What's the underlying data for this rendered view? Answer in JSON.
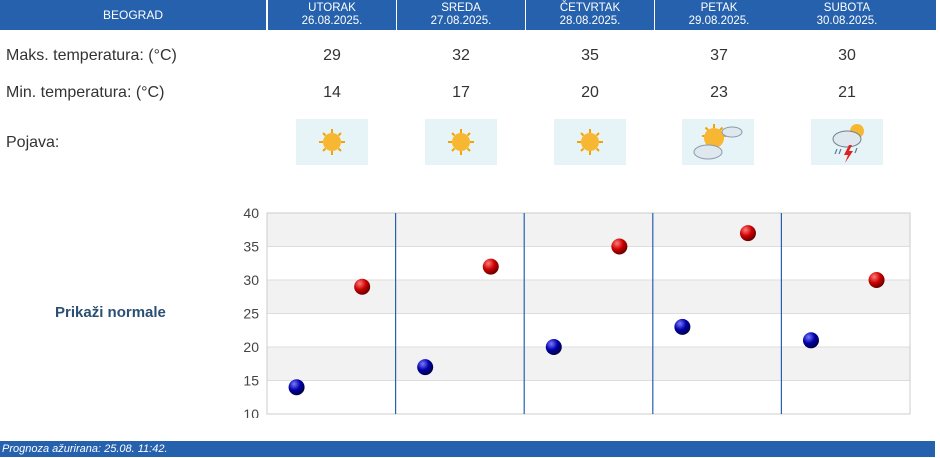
{
  "header": {
    "city": "BEOGRAD",
    "days": [
      {
        "name": "UTORAK",
        "date": "26.08.2025."
      },
      {
        "name": "SREDA",
        "date": "27.08.2025."
      },
      {
        "name": "ČETVRTAK",
        "date": "28.08.2025."
      },
      {
        "name": "PETAK",
        "date": "29.08.2025."
      },
      {
        "name": "SUBOTA",
        "date": "30.08.2025."
      }
    ]
  },
  "rows": {
    "max_label": "Maks. temperatura: (°C)",
    "min_label": "Min. temperatura: (°C)",
    "phenomenon_label": "Pojava:",
    "max": [
      "29",
      "32",
      "35",
      "37",
      "30"
    ],
    "min": [
      "14",
      "17",
      "20",
      "23",
      "21"
    ],
    "icons": [
      "sun-icon",
      "sun-icon",
      "sun-icon",
      "partly-cloudy-icon",
      "thunderstorm-icon"
    ]
  },
  "normals_button": "Prikaži normale",
  "footer": "Prognoza ažurirana:  25.08. 11:42.",
  "colors": {
    "header_bg": "#2561ad",
    "max_point": "#cc0000",
    "min_point": "#0000aa",
    "icon_bg": "#e6f4f8"
  },
  "chart_data": {
    "type": "scatter",
    "categories": [
      "UTORAK",
      "SREDA",
      "ČETVRTAK",
      "PETAK",
      "SUBOTA"
    ],
    "series": [
      {
        "values": [
          14,
          17,
          20,
          23,
          21
        ]
      },
      {
        "values": [
          29,
          32,
          35,
          37,
          30
        ]
      }
    ],
    "yticks": [
      "10",
      "15",
      "20",
      "25",
      "30",
      "35",
      "40"
    ],
    "ylim": [
      10,
      40
    ],
    "grid": true
  }
}
